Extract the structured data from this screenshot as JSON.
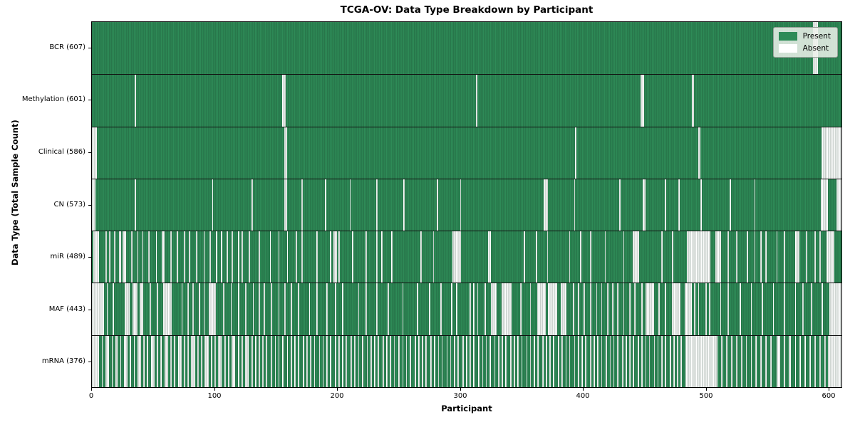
{
  "colors": {
    "present": "#2E8B57",
    "absent": "#FFFFFF",
    "edge_tint": "rgba(18,52,33,0.50)",
    "frame": "#000000",
    "legend_bg": "rgba(238,242,236,0.85)",
    "legend_border": "#9aa29a"
  },
  "chart_data": {
    "type": "heatmap",
    "title": "TCGA-OV: Data Type Breakdown by Participant",
    "xlabel": "Participant",
    "ylabel": "Data Type (Total Sample Count)",
    "legend": [
      "Present",
      "Absent"
    ],
    "legend_position": "upper right",
    "x_ticks": [
      0,
      100,
      200,
      300,
      400,
      500,
      600
    ],
    "xlim": [
      0,
      611
    ],
    "n_participants": 611,
    "cell_states": {
      "present": "green",
      "absent": "white"
    },
    "rows": [
      {
        "name": "BCR",
        "label": "BCR (607)",
        "present_count": 607,
        "absent_ranges_approx": "588-591"
      },
      {
        "name": "Methylation",
        "label": "Methylation (601)",
        "present_count": 601,
        "absent_ranges_approx": "35,155-157,313,447-449,489-490"
      },
      {
        "name": "Clinical",
        "label": "Clinical (586)",
        "present_count": 586,
        "absent_ranges_approx": "0-3,157-158,394,494-495,595-610"
      },
      {
        "name": "CN",
        "label": "CN (573)",
        "present_count": 573,
        "absent_ranges_approx": "0-2,35,98,130,157-158,171,190,210,232,254,281,300,368-371,393,430,449-450,467,478,496,520,540,594-599,607-610"
      },
      {
        "name": "miR",
        "label": "miR (489)",
        "present_count": 489,
        "absent_ranges_approx": "1-5,11,14,18,22-23,25-27,32,37,41,46,52,57-58,64,69,75,79,85,91,96,101,105,110,114,119,122,128,136,145,152,159,166,171,183,194,197-199,201,212,223,232,236,244,268,278,294-300,323-324,352,362,371,389,398,406,418,433,441-445,464,473,485-503,508-512,518,525,534,540,545,549,558,564,573-576,582,589,593,599-604"
      },
      {
        "name": "MAF",
        "label": "MAF (443)",
        "present_count": 443,
        "absent_ranges_approx": "0-9,12,17,27-30,33-36,39-41,47,53,58-64,73,78,82,87,91,95-100,107,113,119,125,131,136,140,146,152,157,162,168,177,183,191,198,204,217,223,232,241,253,265,275,284,293,297,308,311,314,320,325-329,334-341,349,357,363-369,372-378,382-386,392,396,401,406,411,415,420,424,428,433,438,442,448,451-457,462,467,473-479,483-488,491,494,500,503,512,518,528,537,546,555,564,573,579,586,595,601-610"
      },
      {
        "name": "mRNA",
        "label": "mRNA (376)",
        "present_count": 376,
        "absent_ranges_approx": "0-5,8,11-13,16,19-20,23,26-28,31,34,37-39,42,45,48-50,53,56,59-61,64,67,70-72,75,78,81-83,86,89,92-94,97,100,103-105,108,111,114-116,119,122,125-127,130,133,136,139,142,146,149,152,155,159,162,165,168,172,175,178,181,185,188,191,194,198,201,204,207,211,214,217,220,224,227,230,233,237,240,243,246,250,253,256,259,263,266,269,272,276,279,282,285,289,292,295,298,302,305,308,311,315,318,321,324,328,331,334,337,341,344,347,350,354,357,360,363,367,370,373,376,380,383,386,389,393,396,399,402,406,409,412,415,419,422,425,428,432,435,438,441,445,448,451,454,458,461,464,467,471,474,477,480,484-509,513,517,521,525,529,533,537,541,545,549,553,558-560,564,568-569,573,577,581,585,589,593,597,600-610"
      }
    ]
  }
}
